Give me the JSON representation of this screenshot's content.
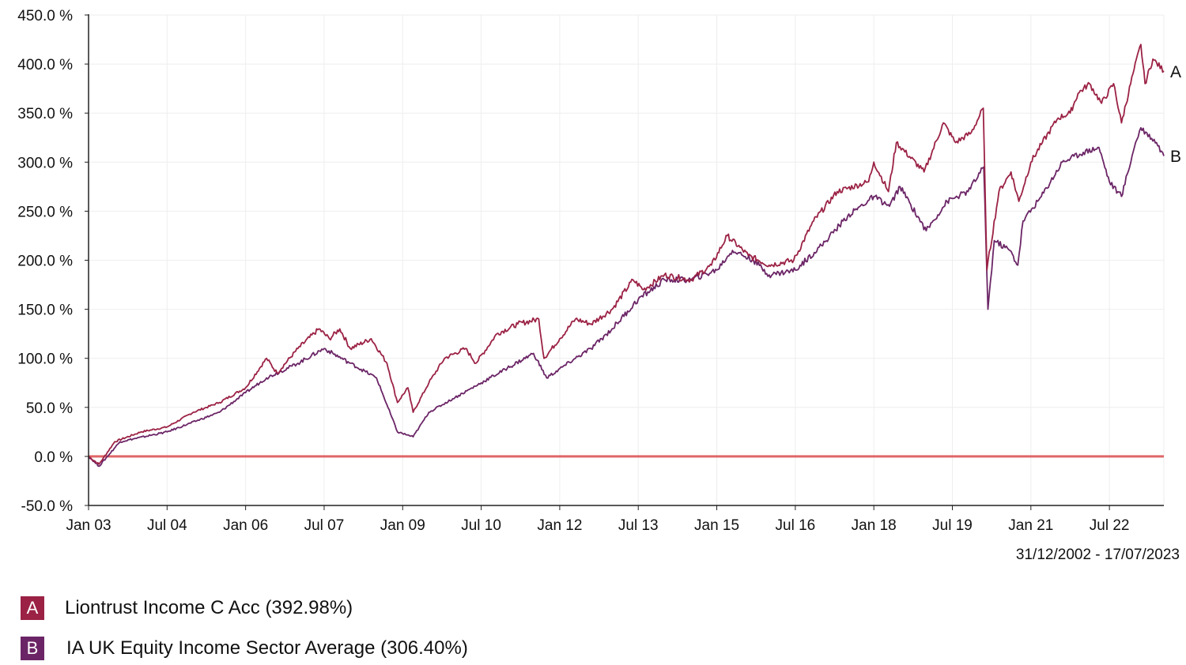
{
  "chart_data": {
    "type": "line",
    "title": "",
    "xlabel": "",
    "ylabel": "",
    "ylim": [
      -50,
      450
    ],
    "yticks": [
      -50,
      0,
      50,
      100,
      150,
      200,
      250,
      300,
      350,
      400,
      450
    ],
    "ytick_labels": [
      "-50.0 %",
      "0.0 %",
      "50.0 %",
      "100.0 %",
      "150.0 %",
      "200.0 %",
      "250.0 %",
      "300.0 %",
      "350.0 %",
      "400.0 %",
      "450.0 %"
    ],
    "xlim": [
      2003.0,
      2023.54
    ],
    "xticks": [
      2003.0,
      2004.5,
      2006.0,
      2007.5,
      2009.0,
      2010.5,
      2012.0,
      2013.5,
      2015.0,
      2016.5,
      2018.0,
      2019.5,
      2021.0,
      2022.5
    ],
    "xtick_labels": [
      "Jan 03",
      "Jul 04",
      "Jan 06",
      "Jul 07",
      "Jan 09",
      "Jul 10",
      "Jan 12",
      "Jul 13",
      "Jan 15",
      "Jul 16",
      "Jan 18",
      "Jul 19",
      "Jan 21",
      "Jul 22"
    ],
    "grid": true,
    "date_range": "31/12/2002 - 17/07/2023",
    "reference_line": {
      "value": 0,
      "color": "#e06666"
    },
    "series": [
      {
        "key": "A",
        "name": "Liontrust Income C Acc (392.98%)",
        "color": "#9b2245",
        "x": [
          2003.0,
          2003.2,
          2003.5,
          2004.0,
          2004.5,
          2005.0,
          2005.5,
          2006.0,
          2006.4,
          2006.6,
          2007.0,
          2007.4,
          2007.6,
          2007.8,
          2008.0,
          2008.4,
          2008.7,
          2008.9,
          2009.1,
          2009.2,
          2009.5,
          2009.8,
          2010.2,
          2010.4,
          2010.8,
          2011.2,
          2011.6,
          2011.7,
          2012.0,
          2012.3,
          2012.6,
          2013.0,
          2013.4,
          2013.6,
          2014.0,
          2014.5,
          2014.9,
          2015.2,
          2015.6,
          2016.0,
          2016.47,
          2016.85,
          2017.3,
          2017.9,
          2018.0,
          2018.28,
          2018.43,
          2018.96,
          2019.33,
          2019.56,
          2019.86,
          2020.09,
          2020.16,
          2020.39,
          2020.62,
          2020.77,
          2021.0,
          2021.22,
          2021.52,
          2021.75,
          2021.9,
          2022.12,
          2022.35,
          2022.58,
          2022.73,
          2022.95,
          2023.1,
          2023.18,
          2023.33,
          2023.54
        ],
        "y": [
          0,
          -8,
          15,
          25,
          30,
          45,
          55,
          70,
          100,
          85,
          110,
          130,
          120,
          130,
          110,
          120,
          95,
          55,
          70,
          45,
          75,
          100,
          110,
          95,
          125,
          135,
          140,
          100,
          120,
          140,
          135,
          150,
          180,
          170,
          185,
          180,
          195,
          225,
          205,
          195,
          200,
          240,
          270,
          280,
          300,
          270,
          320,
          290,
          340,
          320,
          330,
          355,
          190,
          270,
          290,
          260,
          300,
          320,
          345,
          350,
          370,
          380,
          360,
          380,
          340,
          390,
          420,
          380,
          405,
          392.98
        ]
      },
      {
        "key": "B",
        "name": "IA UK Equity Income Sector Average (306.40%)",
        "color": "#6b2566",
        "x": [
          2003.0,
          2003.2,
          2003.6,
          2004.5,
          2005.5,
          2006.0,
          2006.4,
          2007.0,
          2007.5,
          2008.0,
          2008.5,
          2008.9,
          2009.2,
          2009.5,
          2010.0,
          2010.5,
          2011.0,
          2011.5,
          2011.75,
          2012.3,
          2012.6,
          2013.0,
          2013.5,
          2014.0,
          2014.5,
          2015.0,
          2015.3,
          2015.7,
          2016.0,
          2016.5,
          2017.0,
          2017.5,
          2018.0,
          2018.3,
          2018.5,
          2019.0,
          2019.4,
          2019.8,
          2020.1,
          2020.18,
          2020.3,
          2020.6,
          2020.75,
          2020.85,
          2021.2,
          2021.6,
          2022.0,
          2022.3,
          2022.5,
          2022.73,
          2023.0,
          2023.1,
          2023.4,
          2023.54
        ],
        "y": [
          0,
          -10,
          15,
          25,
          45,
          65,
          80,
          95,
          110,
          95,
          80,
          25,
          20,
          45,
          60,
          75,
          90,
          105,
          80,
          100,
          110,
          130,
          160,
          180,
          180,
          190,
          210,
          200,
          185,
          190,
          215,
          245,
          265,
          255,
          275,
          230,
          260,
          270,
          295,
          150,
          220,
          210,
          195,
          240,
          265,
          300,
          310,
          315,
          280,
          265,
          320,
          335,
          320,
          306.4
        ]
      }
    ]
  }
}
